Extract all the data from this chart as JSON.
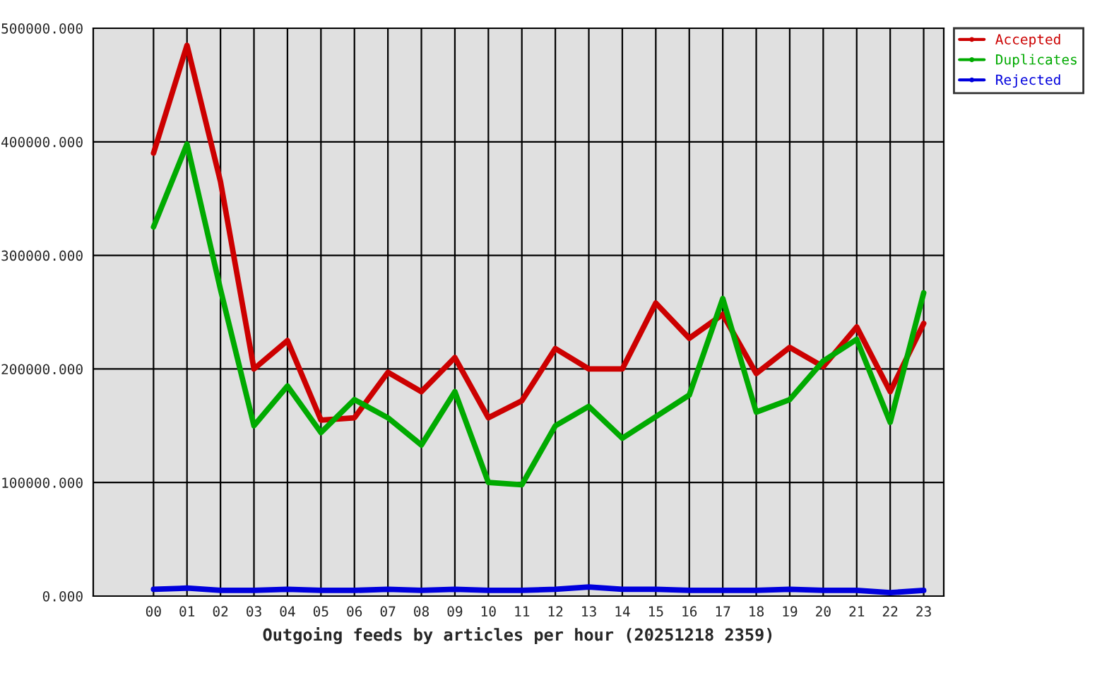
{
  "chart_data": {
    "type": "line",
    "xlabel": "Outgoing feeds by articles per hour (20251218 2359)",
    "categories": [
      "00",
      "01",
      "02",
      "03",
      "04",
      "05",
      "06",
      "07",
      "08",
      "09",
      "10",
      "11",
      "12",
      "13",
      "14",
      "15",
      "16",
      "17",
      "18",
      "19",
      "20",
      "21",
      "22",
      "23"
    ],
    "series": [
      {
        "name": "Accepted",
        "color": "#cc0000",
        "values": [
          390000,
          485000,
          365000,
          200000,
          225000,
          155000,
          157000,
          197000,
          180000,
          210000,
          157000,
          172000,
          218000,
          200000,
          200000,
          258000,
          227000,
          248000,
          196000,
          219000,
          202000,
          237000,
          180000,
          240000
        ]
      },
      {
        "name": "Duplicates",
        "color": "#00aa00",
        "values": [
          325000,
          398000,
          270000,
          150000,
          185000,
          144000,
          173000,
          157000,
          133000,
          180000,
          100000,
          98000,
          150000,
          167000,
          139000,
          158000,
          177000,
          262000,
          162000,
          173000,
          207000,
          226000,
          153000,
          267000
        ]
      },
      {
        "name": "Rejected",
        "color": "#0000dd",
        "values": [
          6000,
          7000,
          5000,
          5000,
          6000,
          5000,
          5000,
          6000,
          5000,
          6000,
          5000,
          5000,
          6000,
          8000,
          6000,
          6000,
          5000,
          5000,
          5000,
          6000,
          5000,
          5000,
          3000,
          5000
        ]
      }
    ],
    "ylim": [
      0,
      500000
    ],
    "yticks": [
      {
        "value": 0,
        "label": "0.000"
      },
      {
        "value": 100000,
        "label": "100000.000"
      },
      {
        "value": 200000,
        "label": "200000.000"
      },
      {
        "value": 300000,
        "label": "300000.000"
      },
      {
        "value": 400000,
        "label": "400000.000"
      },
      {
        "value": 500000,
        "label": "500000.000"
      }
    ],
    "grid": true,
    "legend": "top right",
    "line_style": "solid"
  }
}
